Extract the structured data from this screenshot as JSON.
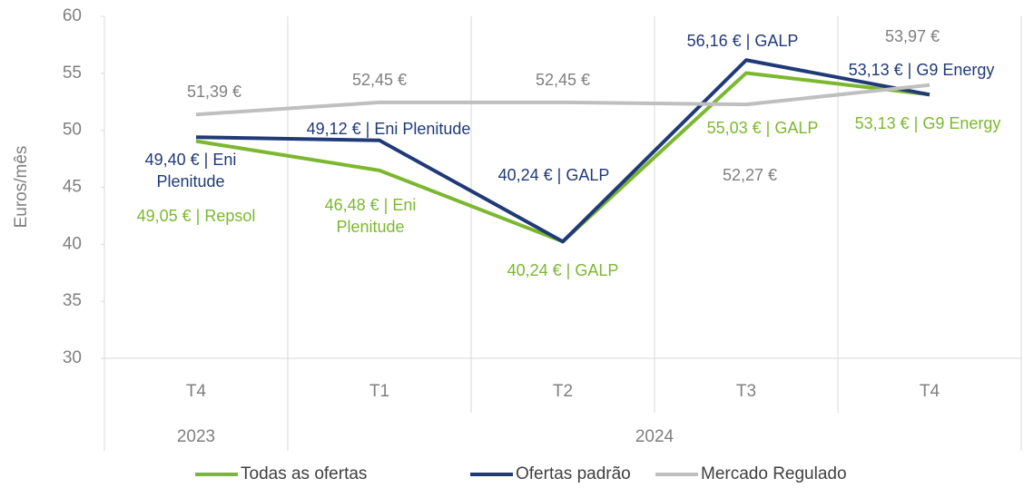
{
  "chart_data": {
    "type": "line",
    "y_label": "Euros/mês",
    "categories": [
      "T4",
      "T1",
      "T2",
      "T3",
      "T4"
    ],
    "groups": [
      {
        "label": "2023",
        "count": 1
      },
      {
        "label": "2024",
        "count": 4
      }
    ],
    "ylim": [
      30,
      60
    ],
    "yticks": [
      30,
      35,
      40,
      45,
      50,
      55,
      60
    ],
    "grid": false,
    "legend": "bottom",
    "series": [
      {
        "name": "Todas as ofertas",
        "color": "#7cb82f",
        "values": [
          49.05,
          46.48,
          40.24,
          55.03,
          53.13
        ],
        "value_labels": [
          "49,05 € | Repsol",
          "46,48 € | Eni Plenitude",
          "40,24 € | GALP",
          "55,03 € | GALP",
          "53,13 € | G9 Energy"
        ]
      },
      {
        "name": "Ofertas padrão",
        "color": "#203a78",
        "values": [
          49.4,
          49.12,
          40.24,
          56.16,
          53.13
        ],
        "value_labels": [
          "49,40 € | Eni Plenitude",
          "49,12 € | Eni Plenitude",
          "40,24 € | GALP",
          "56,16 € | GALP",
          "53,13 € | G9 Energy"
        ]
      },
      {
        "name": "Mercado Regulado",
        "color": "#bfbfbf",
        "label_color": "#7f7f7f",
        "values": [
          51.39,
          52.45,
          52.45,
          52.27,
          53.97
        ],
        "value_labels": [
          "51,39 €",
          "52,45 €",
          "52,45 €",
          "52,27 €",
          "53,97 €"
        ]
      }
    ]
  }
}
